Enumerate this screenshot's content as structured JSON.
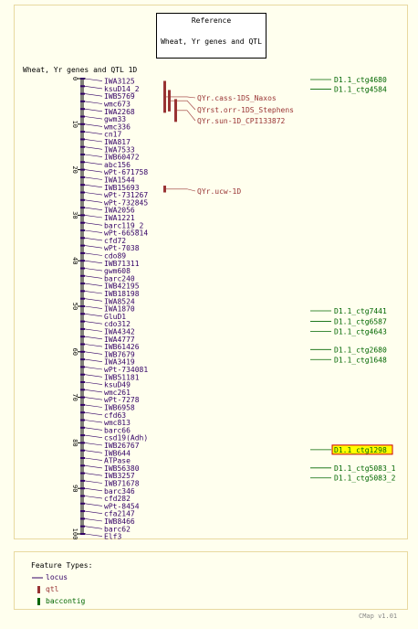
{
  "reference": {
    "heading": "Reference",
    "map_name": "Wheat, Yr genes and QTL"
  },
  "map_title": "Wheat, Yr genes and QTL 1D",
  "colors": {
    "locus": "#330066",
    "qtl": "#993333",
    "contig": "#006600",
    "highlight": "#ffff00",
    "highlight_border": "#cc0000"
  },
  "axis": {
    "min": 0,
    "max": 100,
    "ticks": [
      0,
      10,
      20,
      30,
      40,
      50,
      60,
      70,
      80,
      90,
      100
    ]
  },
  "loci": [
    "IWA3125",
    "ksuD14_2",
    "IWB5769",
    "wmc673",
    "IWA2268",
    "gwm33",
    "wmc336",
    "cn17",
    "IWA817",
    "IWA7533",
    "IWB60472",
    "abc156",
    "wPt-671758",
    "IWA1544",
    "IWB15693",
    "wPt-731267",
    "wPt-732845",
    "IWA2056",
    "IWA1221",
    "barc119_2",
    "wPt-665814",
    "cfd72",
    "wPt-7038",
    "cdo89",
    "IWB71311",
    "gwm608",
    "barc240",
    "IWB42195",
    "IWB18198",
    "IWA8524",
    "IWA1870",
    "GluD1",
    "cdo312",
    "IWA4342",
    "IWA4777",
    "IWB61426",
    "IWB7679",
    "IWA3419",
    "wPt-734081",
    "IWB51181",
    "ksuD49",
    "wmc261",
    "wPt-7278",
    "IWB6958",
    "cfd63",
    "wmc813",
    "barc66",
    "csd19(Adh)",
    "IWB26767",
    "IWB644",
    "ATPase",
    "IWB56380",
    "IWB3257",
    "IWB71678",
    "barc346",
    "cfd282",
    "wPt-8454",
    "cfa2147",
    "IWB8466",
    "barc62",
    "Elf3"
  ],
  "qtls": [
    {
      "name": "QYr.cass-1DS_Naxos",
      "start": 0.5,
      "end": 7.5
    },
    {
      "name": "QYrst.orr-1DS_Stephens",
      "start": 2.5,
      "end": 7.2
    },
    {
      "name": "QYr.sun-1D_CPI133872",
      "start": 4.5,
      "end": 9.5
    },
    {
      "name": "QYr.ucw-1D",
      "start": 23.5,
      "end": 25.0
    }
  ],
  "contigs": [
    {
      "name": "D1.1_ctg4680",
      "y": 0.2
    },
    {
      "name": "D1.1_ctg4584",
      "y": 2.3
    },
    {
      "name": "D1.1_ctg7441",
      "y": 51.0
    },
    {
      "name": "D1.1_ctg6587",
      "y": 53.3
    },
    {
      "name": "D1.1_ctg4643",
      "y": 55.5
    },
    {
      "name": "D1.1_ctg2680",
      "y": 59.5
    },
    {
      "name": "D1.1_ctg1648",
      "y": 61.7
    },
    {
      "name": "D1.1_ctg1298",
      "y": 81.5,
      "highlight": true
    },
    {
      "name": "D1.1_ctg5083_1",
      "y": 85.5
    },
    {
      "name": "D1.1_ctg5083_2",
      "y": 87.7
    }
  ],
  "legend": {
    "title": "Feature Types:",
    "items": [
      {
        "label": "locus",
        "type": "locus"
      },
      {
        "label": "qtl",
        "type": "qtl"
      },
      {
        "label": "baccontig",
        "type": "contig"
      }
    ]
  },
  "version": "CMap v1.01"
}
